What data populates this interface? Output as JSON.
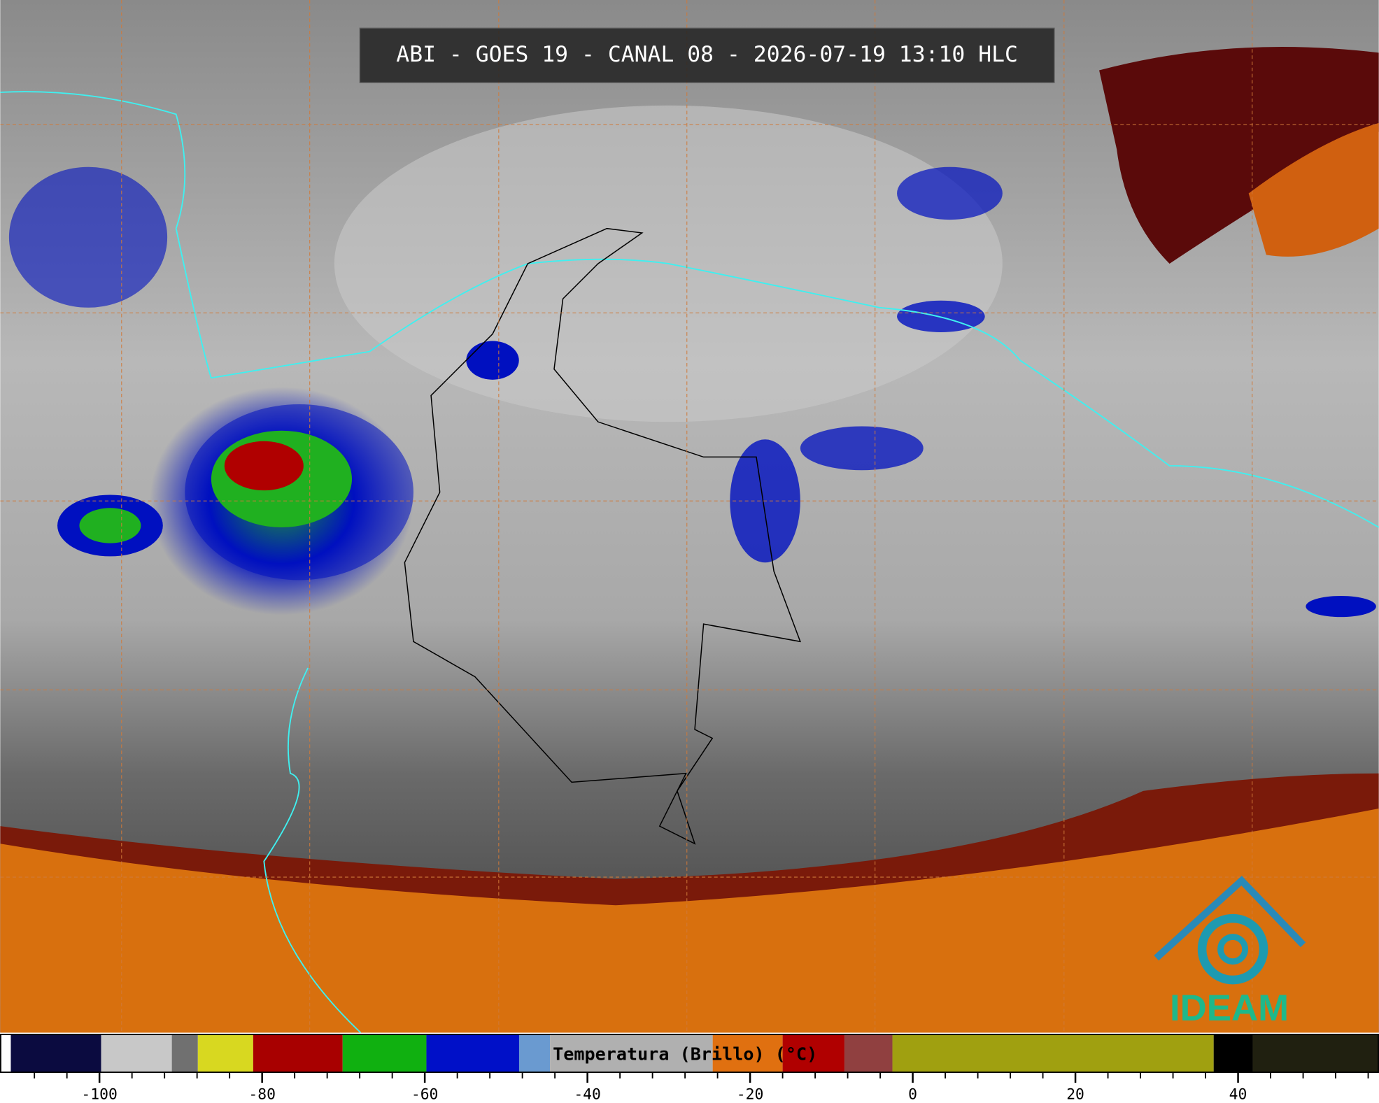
{
  "header": {
    "title": "ABI - GOES 19 - CANAL 08 - 2026-07-19 13:10 HLC"
  },
  "logo": {
    "text": "IDEAM"
  },
  "colorbar": {
    "label": "Temperatura (Brillo) (°C)",
    "lim": [
      -112.2,
      57.3
    ],
    "ticks": [
      -100,
      -80,
      -60,
      -40,
      -20,
      0,
      20,
      40
    ],
    "minor_ticks": [
      -108,
      -104,
      -96,
      -92,
      -88,
      -84,
      -76,
      -72,
      -68,
      -64,
      -56,
      -52,
      -48,
      -44,
      -36,
      -32,
      -28,
      -24,
      -16,
      -12,
      -8,
      -4,
      4,
      8,
      12,
      16,
      24,
      28,
      32,
      36,
      44,
      48,
      52,
      56
    ],
    "segments": [
      {
        "from": -112.2,
        "to": -110.9,
        "color": "#ffffff"
      },
      {
        "from": -110.9,
        "to": -99.8,
        "color": "#0b0b40"
      },
      {
        "from": -99.8,
        "to": -91.1,
        "color": "#c8c8c8"
      },
      {
        "from": -91.1,
        "to": -87.9,
        "color": "#707070"
      },
      {
        "from": -87.9,
        "to": -81.1,
        "color": "#d8d820"
      },
      {
        "from": -81.1,
        "to": -70.1,
        "color": "#a80000"
      },
      {
        "from": -70.1,
        "to": -59.8,
        "color": "#10b010"
      },
      {
        "from": -59.8,
        "to": -48.4,
        "color": "#0010c8"
      },
      {
        "from": -48.4,
        "to": -44.6,
        "color": "#6a9ad0"
      },
      {
        "from": -44.6,
        "to": -24.6,
        "color": "#b0b0b0"
      },
      {
        "from": -24.6,
        "to": -16,
        "color": "#e07010"
      },
      {
        "from": -16,
        "to": -8.4,
        "color": "#b00000"
      },
      {
        "from": -8.4,
        "to": -2.5,
        "color": "#904040"
      },
      {
        "from": -2.5,
        "to": 37,
        "color": "#a0a010"
      },
      {
        "from": 37,
        "to": 41.8,
        "color": "#000000"
      },
      {
        "from": 41.8,
        "to": 57.3,
        "color": "#202010"
      }
    ]
  }
}
